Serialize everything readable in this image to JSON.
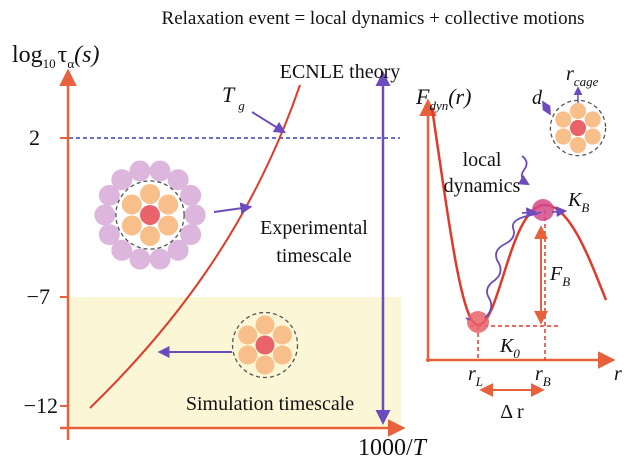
{
  "title": "Relaxation event = local dynamics + collective motions",
  "left_panel": {
    "y_axis_label": {
      "base": "log",
      "sub": "10",
      "symbol": "τ",
      "symbol_sub": "α",
      "args": "(s)"
    },
    "y_ticks": [
      "2",
      "−7",
      "−12"
    ],
    "x_axis_label": {
      "text": "1000/",
      "var": "T"
    },
    "curve_label": "ECNLE theory",
    "tg_label": {
      "base": "T",
      "sub": "g"
    },
    "experimental_label": [
      "Experimental",
      "timescale"
    ],
    "simulation_label": "Simulation timescale"
  },
  "right_panel": {
    "y_axis_label": {
      "base": "F",
      "sub": "dyn",
      "args": "(r)"
    },
    "local_dynamics_label": [
      "local",
      "dynamics"
    ],
    "d_label": "d",
    "r_cage_label": {
      "base": "r",
      "sub": "cage"
    },
    "kb_label": {
      "base": "K",
      "sub": "B"
    },
    "fb_label": {
      "base": "F",
      "sub": "B"
    },
    "k0_label": {
      "base": "K",
      "sub": "0"
    },
    "rl_label": {
      "base": "r",
      "sub": "L"
    },
    "rb_label": {
      "base": "r",
      "sub": "B"
    },
    "x_axis_label": "r",
    "delta_r_label": "Δ r"
  }
}
